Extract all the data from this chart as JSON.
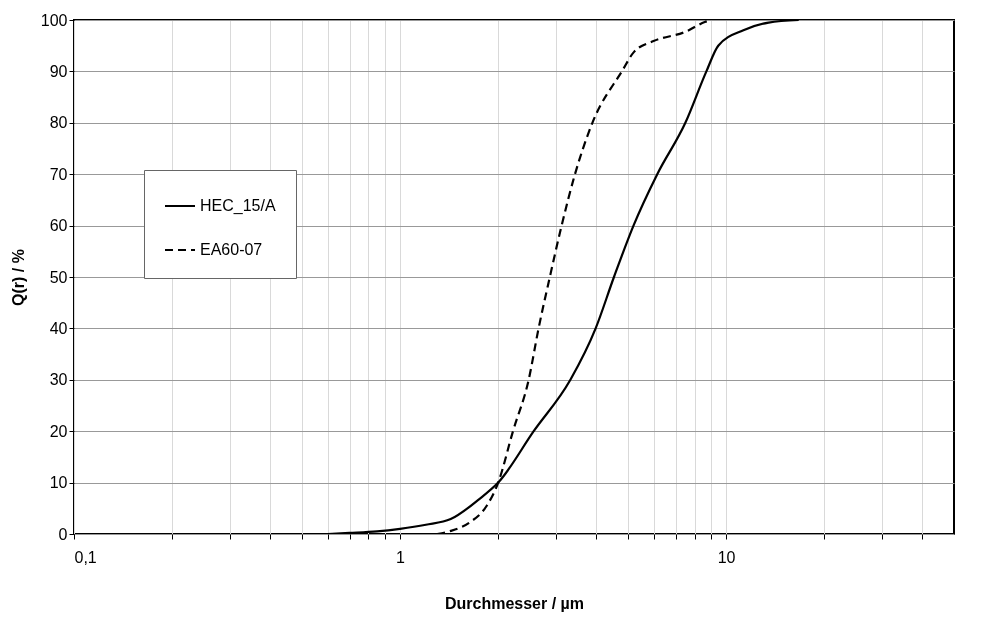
{
  "chart_data": {
    "type": "line",
    "xlabel": "Durchmesser / µm",
    "ylabel": "Q(r) / %",
    "log": "x",
    "grid": true,
    "legend": "left",
    "marker": "none",
    "xlim": [
      0.1,
      50
    ],
    "ylim": [
      0,
      100
    ],
    "xticks": [
      {
        "value": 0.1,
        "label": "0,1"
      },
      {
        "value": 0.2,
        "label": null
      },
      {
        "value": 0.3,
        "label": null
      },
      {
        "value": 0.4,
        "label": null
      },
      {
        "value": 0.5,
        "label": null
      },
      {
        "value": 0.6,
        "label": null
      },
      {
        "value": 0.7,
        "label": null
      },
      {
        "value": 0.8,
        "label": null
      },
      {
        "value": 0.9,
        "label": null
      },
      1,
      {
        "value": 2,
        "label": null
      },
      {
        "value": 3,
        "label": null
      },
      {
        "value": 4,
        "label": null
      },
      {
        "value": 5,
        "label": null
      },
      {
        "value": 6,
        "label": null
      },
      {
        "value": 7,
        "label": null
      },
      {
        "value": 8,
        "label": null
      },
      {
        "value": 9,
        "label": null
      },
      10,
      {
        "value": 20,
        "label": null
      },
      {
        "value": 30,
        "label": null
      },
      {
        "value": 40,
        "label": null
      }
    ],
    "yticks": [
      0,
      10,
      20,
      30,
      40,
      50,
      60,
      70,
      80,
      90,
      100
    ],
    "series": [
      {
        "name": "HEC_15/A",
        "color": "#000000",
        "line_style": "solid",
        "x": [
          0.6,
          0.7,
          0.85,
          1,
          1.2,
          1.43,
          1.75,
          2,
          2.57,
          3.33,
          3.98,
          4.53,
          5.2,
          6.15,
          7.5,
          8.7,
          9.46,
          11.3,
          13.5,
          16.7
        ],
        "values": [
          0,
          0.2,
          0.5,
          1,
          1.8,
          2.9,
          6.8,
          10,
          20,
          30,
          40,
          50,
          60,
          70,
          80,
          90,
          95,
          98,
          99.5,
          100
        ]
      },
      {
        "name": "EA60-07",
        "color": "#000000",
        "line_style": "dashed",
        "x": [
          1.3,
          1.43,
          1.64,
          1.84,
          2,
          2.22,
          2.48,
          2.66,
          2.88,
          3.13,
          3.44,
          3.89,
          4.79,
          5.22,
          5.99,
          7.5,
          8.6,
          9
        ],
        "values": [
          0,
          0.6,
          2.3,
          5.4,
          10,
          20,
          30,
          40,
          50,
          60,
          70,
          80,
          90,
          93.8,
          95.9,
          97.7,
          99.6,
          100
        ]
      }
    ]
  }
}
